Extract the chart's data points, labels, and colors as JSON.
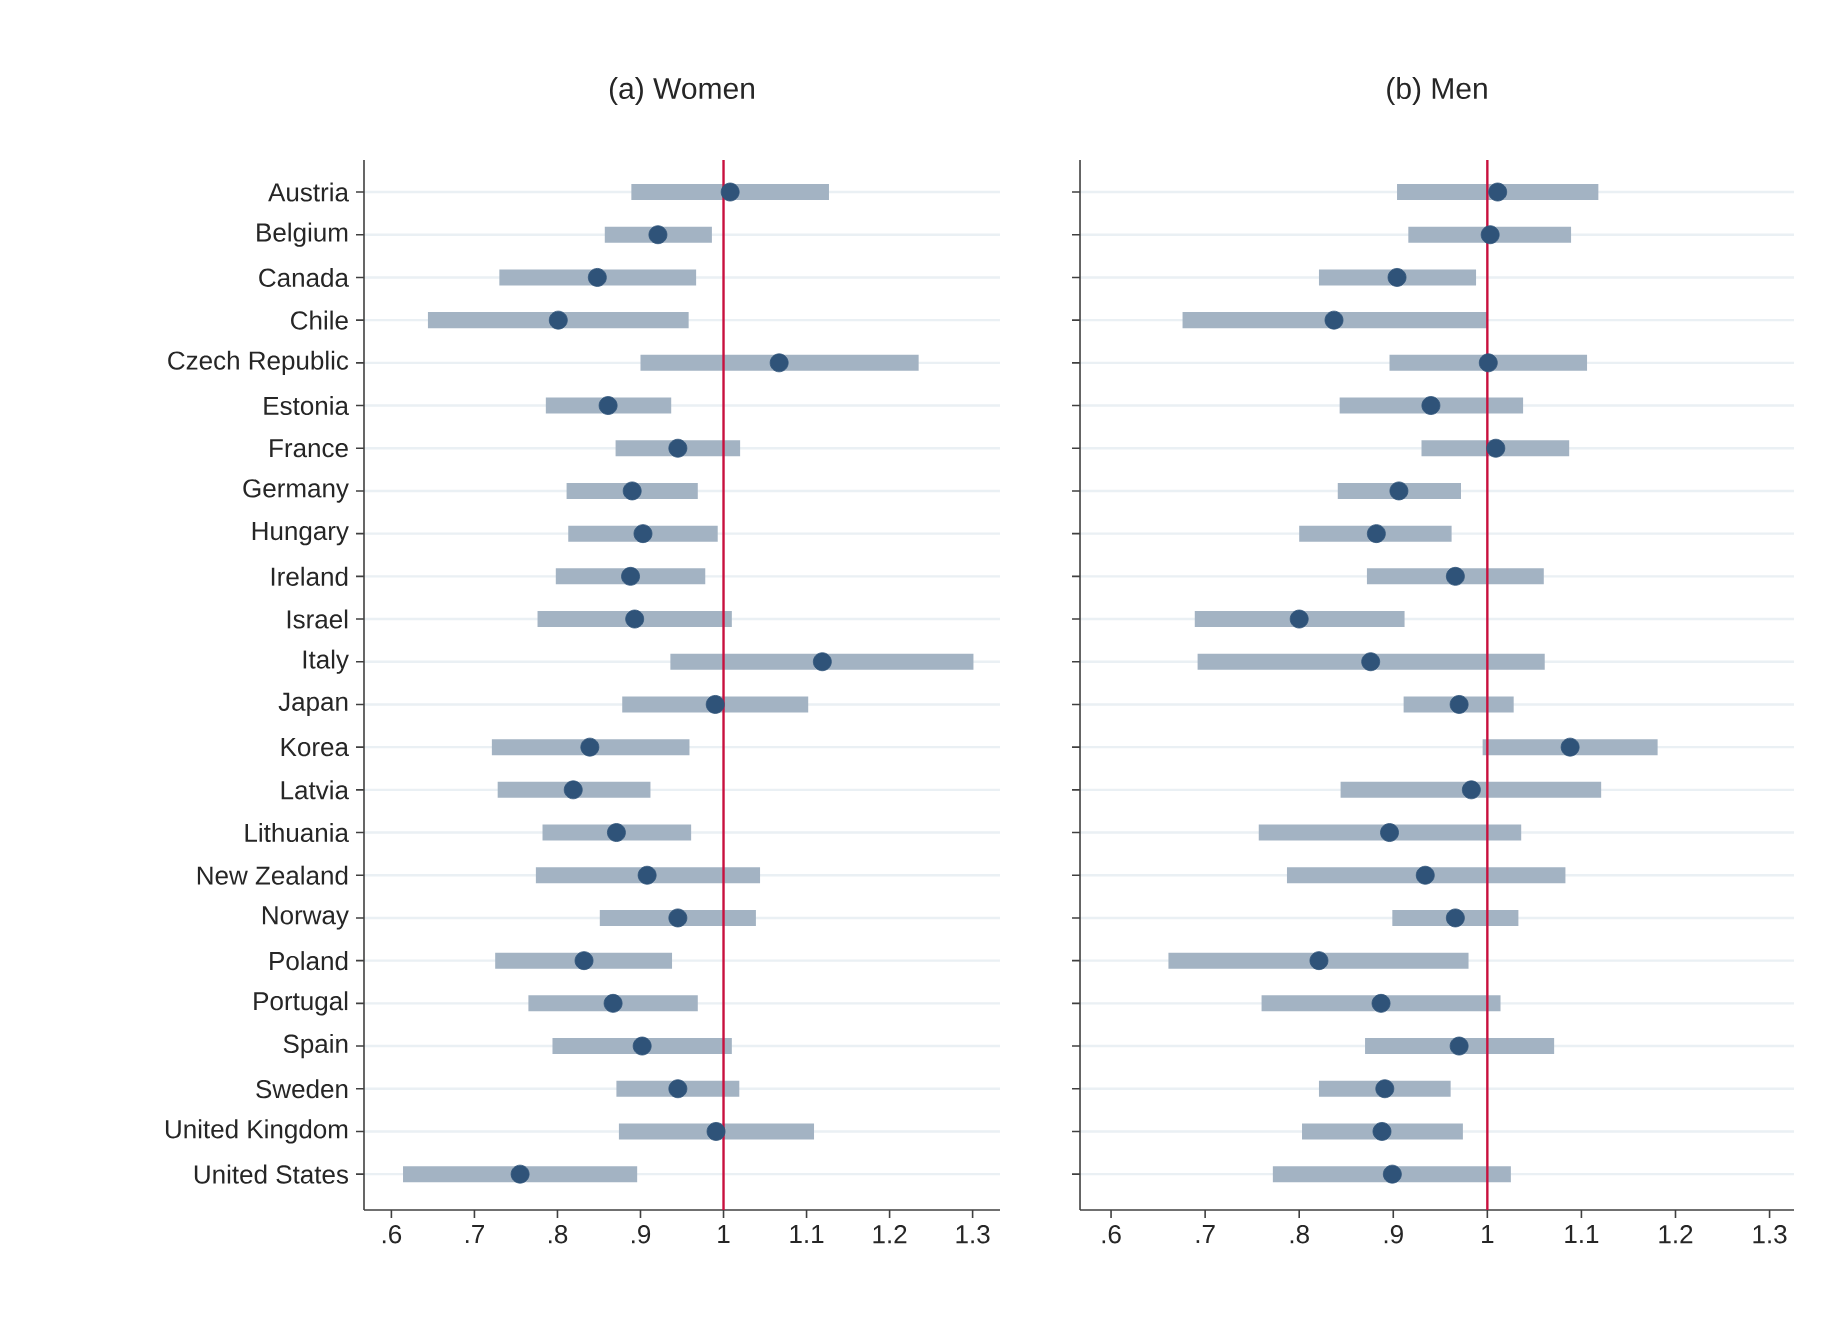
{
  "chart_data": [
    {
      "type": "scatter",
      "title": "(a) Women",
      "orientation": "horizontal",
      "marker": "circle",
      "grid": "y",
      "color": "#2f5379",
      "categories": [
        "Austria",
        "Belgium",
        "Canada",
        "Chile",
        "Czech Republic",
        "Estonia",
        "France",
        "Germany",
        "Hungary",
        "Ireland",
        "Israel",
        "Italy",
        "Japan",
        "Korea",
        "Latvia",
        "Lithuania",
        "New Zealand",
        "Norway",
        "Poland",
        "Portugal",
        "Spain",
        "Sweden",
        "United Kingdom",
        "United States"
      ],
      "values": [
        1.008,
        0.921,
        0.848,
        0.801,
        1.067,
        0.861,
        0.945,
        0.89,
        0.903,
        0.888,
        0.893,
        1.119,
        0.99,
        0.839,
        0.819,
        0.871,
        0.908,
        0.945,
        0.832,
        0.867,
        0.902,
        0.945,
        0.991,
        0.755
      ],
      "errors": [
        [
          0.889,
          1.127
        ],
        [
          0.857,
          0.986
        ],
        [
          0.73,
          0.967
        ],
        [
          0.644,
          0.958
        ],
        [
          0.9,
          1.235
        ],
        [
          0.786,
          0.937
        ],
        [
          0.87,
          1.02
        ],
        [
          0.811,
          0.969
        ],
        [
          0.813,
          0.993
        ],
        [
          0.798,
          0.978
        ],
        [
          0.776,
          1.01
        ],
        [
          0.936,
          1.301
        ],
        [
          0.878,
          1.102
        ],
        [
          0.721,
          0.959
        ],
        [
          0.728,
          0.912
        ],
        [
          0.782,
          0.961
        ],
        [
          0.774,
          1.044
        ],
        [
          0.851,
          1.039
        ],
        [
          0.725,
          0.938
        ],
        [
          0.765,
          0.969
        ],
        [
          0.794,
          1.01
        ],
        [
          0.871,
          1.019
        ],
        [
          0.874,
          1.109
        ],
        [
          0.614,
          0.896
        ]
      ],
      "xlim": [
        0.567,
        1.333
      ],
      "xticks": [
        {
          "value": 0.6,
          "label": ".6"
        },
        {
          "value": 0.7,
          "label": ".7"
        },
        {
          "value": 0.8,
          "label": ".8"
        },
        {
          "value": 0.9,
          "label": ".9"
        },
        1,
        1.1,
        1.2,
        1.3
      ],
      "ref_lines": [
        {
          "axis": "x",
          "value": 1,
          "color": "#c8103e"
        }
      ]
    },
    {
      "type": "scatter",
      "title": "(b) Men",
      "orientation": "horizontal",
      "marker": "circle",
      "grid": "y",
      "color": "#2f5379",
      "tick_labels": "x",
      "categories": [
        null,
        null,
        null,
        null,
        null,
        null,
        null,
        null,
        null,
        null,
        null,
        null,
        null,
        null,
        null,
        null,
        null,
        null,
        null,
        null,
        null,
        null,
        null,
        null
      ],
      "values": [
        1.011,
        1.003,
        0.904,
        0.837,
        1.001,
        0.94,
        1.009,
        0.906,
        0.882,
        0.966,
        0.8,
        0.876,
        0.97,
        1.088,
        0.983,
        0.896,
        0.934,
        0.966,
        0.821,
        0.887,
        0.97,
        0.891,
        0.888,
        0.899
      ],
      "errors": [
        [
          0.904,
          1.118
        ],
        [
          0.916,
          1.089
        ],
        [
          0.821,
          0.988
        ],
        [
          0.676,
          1.0
        ],
        [
          0.896,
          1.106
        ],
        [
          0.843,
          1.038
        ],
        [
          0.93,
          1.087
        ],
        [
          0.841,
          0.972
        ],
        [
          0.8,
          0.962
        ],
        [
          0.872,
          1.06
        ],
        [
          0.689,
          0.912
        ],
        [
          0.692,
          1.061
        ],
        [
          0.911,
          1.028
        ],
        [
          0.995,
          1.181
        ],
        [
          0.844,
          1.121
        ],
        [
          0.757,
          1.036
        ],
        [
          0.787,
          1.083
        ],
        [
          0.899,
          1.033
        ],
        [
          0.661,
          0.98
        ],
        [
          0.76,
          1.014
        ],
        [
          0.87,
          1.071
        ],
        [
          0.821,
          0.961
        ],
        [
          0.803,
          0.974
        ],
        [
          0.772,
          1.025
        ]
      ],
      "xlim": [
        0.567,
        1.326
      ],
      "xticks": [
        {
          "value": 0.6,
          "label": ".6"
        },
        {
          "value": 0.7,
          "label": ".7"
        },
        {
          "value": 0.8,
          "label": ".8"
        },
        {
          "value": 0.9,
          "label": ".9"
        },
        1,
        1.1,
        1.2,
        1.3
      ],
      "ref_lines": [
        {
          "axis": "x",
          "value": 1,
          "color": "#c8103e"
        }
      ]
    }
  ]
}
